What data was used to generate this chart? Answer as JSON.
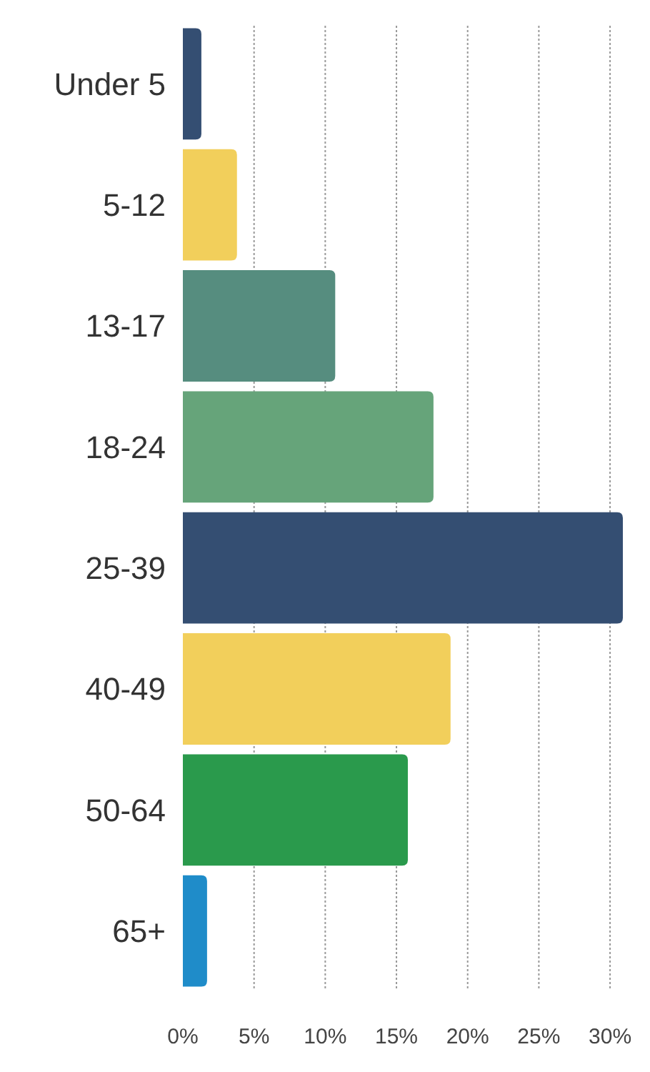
{
  "chart_data": {
    "type": "bar",
    "orientation": "horizontal",
    "categories": [
      "Under 5",
      "5-12",
      "13-17",
      "18-24",
      "25-39",
      "40-49",
      "50-64",
      "65+"
    ],
    "values": [
      1.3,
      3.8,
      10.7,
      17.6,
      30.9,
      18.8,
      15.8,
      1.7
    ],
    "colors": [
      "#344e72",
      "#f2cf5b",
      "#568d7f",
      "#66a47a",
      "#344e72",
      "#f2cf5b",
      "#2a9a4c",
      "#1f8cc9"
    ],
    "xlim": [
      0,
      31
    ],
    "xticks": [
      {
        "value": 0,
        "label": "0%"
      },
      {
        "value": 5,
        "label": "5%"
      },
      {
        "value": 10,
        "label": "10%"
      },
      {
        "value": 15,
        "label": "15%"
      },
      {
        "value": 20,
        "label": "20%"
      },
      {
        "value": 25,
        "label": "25%"
      },
      {
        "value": 30,
        "label": "30%"
      }
    ],
    "grid": "x"
  }
}
